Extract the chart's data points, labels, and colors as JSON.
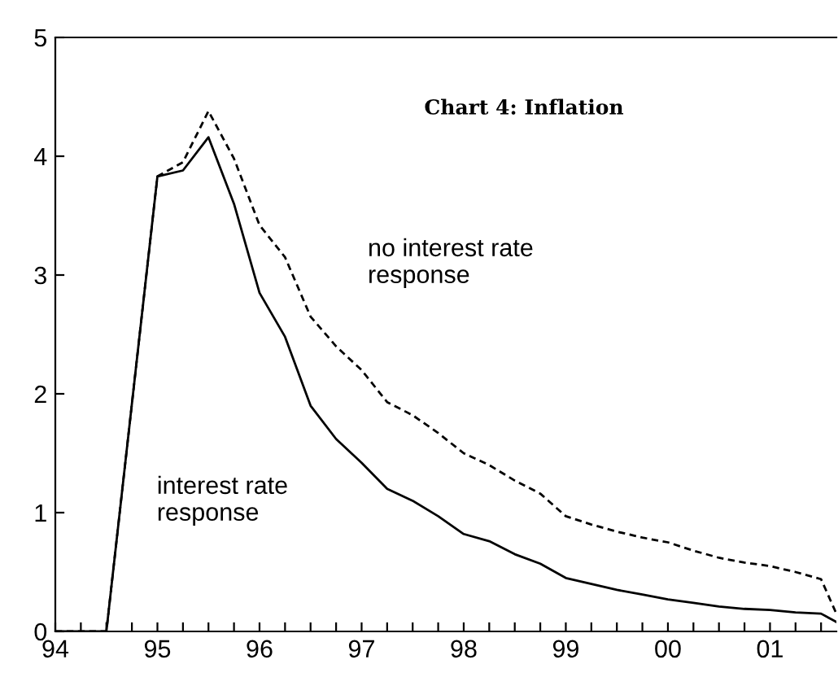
{
  "chart_data": {
    "type": "line",
    "title": "Chart 4: Inflation",
    "x": [
      1994.0,
      1994.25,
      1994.5,
      1995.0,
      1995.25,
      1995.5,
      1995.75,
      1996.0,
      1996.25,
      1996.5,
      1996.75,
      1997.0,
      1997.25,
      1997.5,
      1997.75,
      1998.0,
      1998.25,
      1998.5,
      1998.75,
      1999.0,
      1999.25,
      1999.5,
      1999.75,
      2000.0,
      2000.25,
      2000.5,
      2000.75,
      2001.0,
      2001.25,
      2001.5,
      2001.65
    ],
    "series": [
      {
        "name": "interest rate\nresponse",
        "color": "#000000",
        "line_style": "solid",
        "values": [
          0,
          0,
          0,
          3.83,
          3.88,
          4.16,
          3.6,
          2.85,
          2.48,
          1.9,
          1.62,
          1.42,
          1.2,
          1.1,
          0.97,
          0.82,
          0.76,
          0.65,
          0.57,
          0.45,
          0.4,
          0.35,
          0.31,
          0.27,
          0.24,
          0.21,
          0.19,
          0.18,
          0.16,
          0.15,
          0.08
        ]
      },
      {
        "name": "no interest rate\nresponse",
        "color": "#000000",
        "line_style": "dashed",
        "values": [
          0,
          0,
          0,
          3.83,
          3.95,
          4.38,
          3.98,
          3.42,
          3.15,
          2.65,
          2.4,
          2.2,
          1.93,
          1.82,
          1.67,
          1.5,
          1.4,
          1.27,
          1.16,
          0.97,
          0.9,
          0.84,
          0.79,
          0.75,
          0.68,
          0.62,
          0.58,
          0.55,
          0.5,
          0.44,
          0.15
        ]
      }
    ],
    "xlim": [
      1994.0,
      2001.65
    ],
    "xticks": [
      {
        "value": 1994,
        "label": "94"
      },
      {
        "value": 1994.25,
        "label": null
      },
      {
        "value": 1994.5,
        "label": null
      },
      {
        "value": 1994.75,
        "label": null
      },
      {
        "value": 1995,
        "label": "95"
      },
      {
        "value": 1995.25,
        "label": null
      },
      {
        "value": 1995.5,
        "label": null
      },
      {
        "value": 1995.75,
        "label": null
      },
      {
        "value": 1996,
        "label": "96"
      },
      {
        "value": 1996.25,
        "label": null
      },
      {
        "value": 1996.5,
        "label": null
      },
      {
        "value": 1996.75,
        "label": null
      },
      {
        "value": 1997,
        "label": "97"
      },
      {
        "value": 1997.25,
        "label": null
      },
      {
        "value": 1997.5,
        "label": null
      },
      {
        "value": 1997.75,
        "label": null
      },
      {
        "value": 1998,
        "label": "98"
      },
      {
        "value": 1998.25,
        "label": null
      },
      {
        "value": 1998.5,
        "label": null
      },
      {
        "value": 1998.75,
        "label": null
      },
      {
        "value": 1999,
        "label": "99"
      },
      {
        "value": 1999.25,
        "label": null
      },
      {
        "value": 1999.5,
        "label": null
      },
      {
        "value": 1999.75,
        "label": null
      },
      {
        "value": 2000,
        "label": "00"
      },
      {
        "value": 2000.25,
        "label": null
      },
      {
        "value": 2000.5,
        "label": null
      },
      {
        "value": 2000.75,
        "label": null
      },
      {
        "value": 2001,
        "label": "01"
      },
      {
        "value": 2001.25,
        "label": null
      },
      {
        "value": 2001.5,
        "label": null
      }
    ],
    "ylim": [
      0,
      5
    ],
    "yticks": [
      0,
      1,
      2,
      3,
      4,
      5
    ],
    "grid": false,
    "legend": false,
    "marker": "none"
  }
}
